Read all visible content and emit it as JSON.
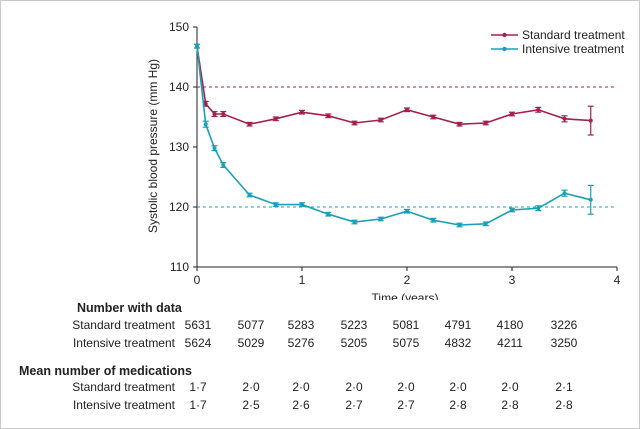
{
  "chart_data": {
    "type": "line",
    "xlabel": "Time (years)",
    "ylabel": "Systolic blood pressure (mm Hg)",
    "xlim": [
      0,
      4
    ],
    "ylim": [
      110,
      150
    ],
    "xticks": [
      "0",
      "1",
      "2",
      "3",
      "4"
    ],
    "yticks": [
      "110",
      "120",
      "130",
      "140",
      "150"
    ],
    "legend_position": "top-right",
    "reference_lines": [
      {
        "y": 140,
        "color": "#a5204f",
        "style": "dashed"
      },
      {
        "y": 120,
        "color": "#1aa0b8",
        "style": "dashed"
      }
    ],
    "series": [
      {
        "name": "Standard treatment",
        "color": "#a5204f",
        "x": [
          0,
          0.083,
          0.167,
          0.25,
          0.5,
          0.75,
          1.0,
          1.25,
          1.5,
          1.75,
          2.0,
          2.25,
          2.5,
          2.75,
          3.0,
          3.25,
          3.5,
          3.75
        ],
        "y": [
          146.8,
          137.2,
          135.5,
          135.5,
          133.8,
          134.7,
          135.8,
          135.2,
          134.0,
          134.5,
          136.2,
          135.0,
          133.8,
          134.0,
          135.5,
          136.2,
          134.7,
          134.4
        ],
        "err": [
          0.3,
          0.4,
          0.4,
          0.4,
          0.3,
          0.3,
          0.3,
          0.3,
          0.3,
          0.3,
          0.3,
          0.3,
          0.3,
          0.3,
          0.3,
          0.4,
          0.5,
          2.4
        ]
      },
      {
        "name": "Intensive treatment",
        "color": "#1aa0b8",
        "x": [
          0,
          0.083,
          0.167,
          0.25,
          0.5,
          0.75,
          1.0,
          1.25,
          1.5,
          1.75,
          2.0,
          2.25,
          2.5,
          2.75,
          3.0,
          3.25,
          3.5,
          3.75
        ],
        "y": [
          146.8,
          133.8,
          129.8,
          127.0,
          122.0,
          120.4,
          120.4,
          118.8,
          117.5,
          118.0,
          119.3,
          117.8,
          117.0,
          117.2,
          119.5,
          119.8,
          122.3,
          121.2
        ],
        "err": [
          0.3,
          0.5,
          0.4,
          0.4,
          0.3,
          0.3,
          0.3,
          0.3,
          0.3,
          0.3,
          0.3,
          0.3,
          0.3,
          0.3,
          0.3,
          0.4,
          0.5,
          2.4
        ]
      }
    ]
  },
  "table": {
    "number_with_data": {
      "title": "Number with data",
      "rows": [
        {
          "label": "Standard treatment",
          "values": [
            "5631",
            "5077",
            "5283",
            "5223",
            "5081",
            "4791",
            "4180",
            "3226"
          ]
        },
        {
          "label": "Intensive treatment",
          "values": [
            "5624",
            "5029",
            "5276",
            "5205",
            "5075",
            "4832",
            "4211",
            "3250"
          ]
        }
      ]
    },
    "mean_medications": {
      "title": "Mean number of medications",
      "rows": [
        {
          "label": "Standard treatment",
          "values": [
            "1·7",
            "2·0",
            "2·0",
            "2·0",
            "2·0",
            "2·0",
            "2·0",
            "2·1"
          ]
        },
        {
          "label": "Intensive treatment",
          "values": [
            "1·7",
            "2·5",
            "2·6",
            "2·7",
            "2·7",
            "2·8",
            "2·8",
            "2·8"
          ]
        }
      ]
    }
  }
}
